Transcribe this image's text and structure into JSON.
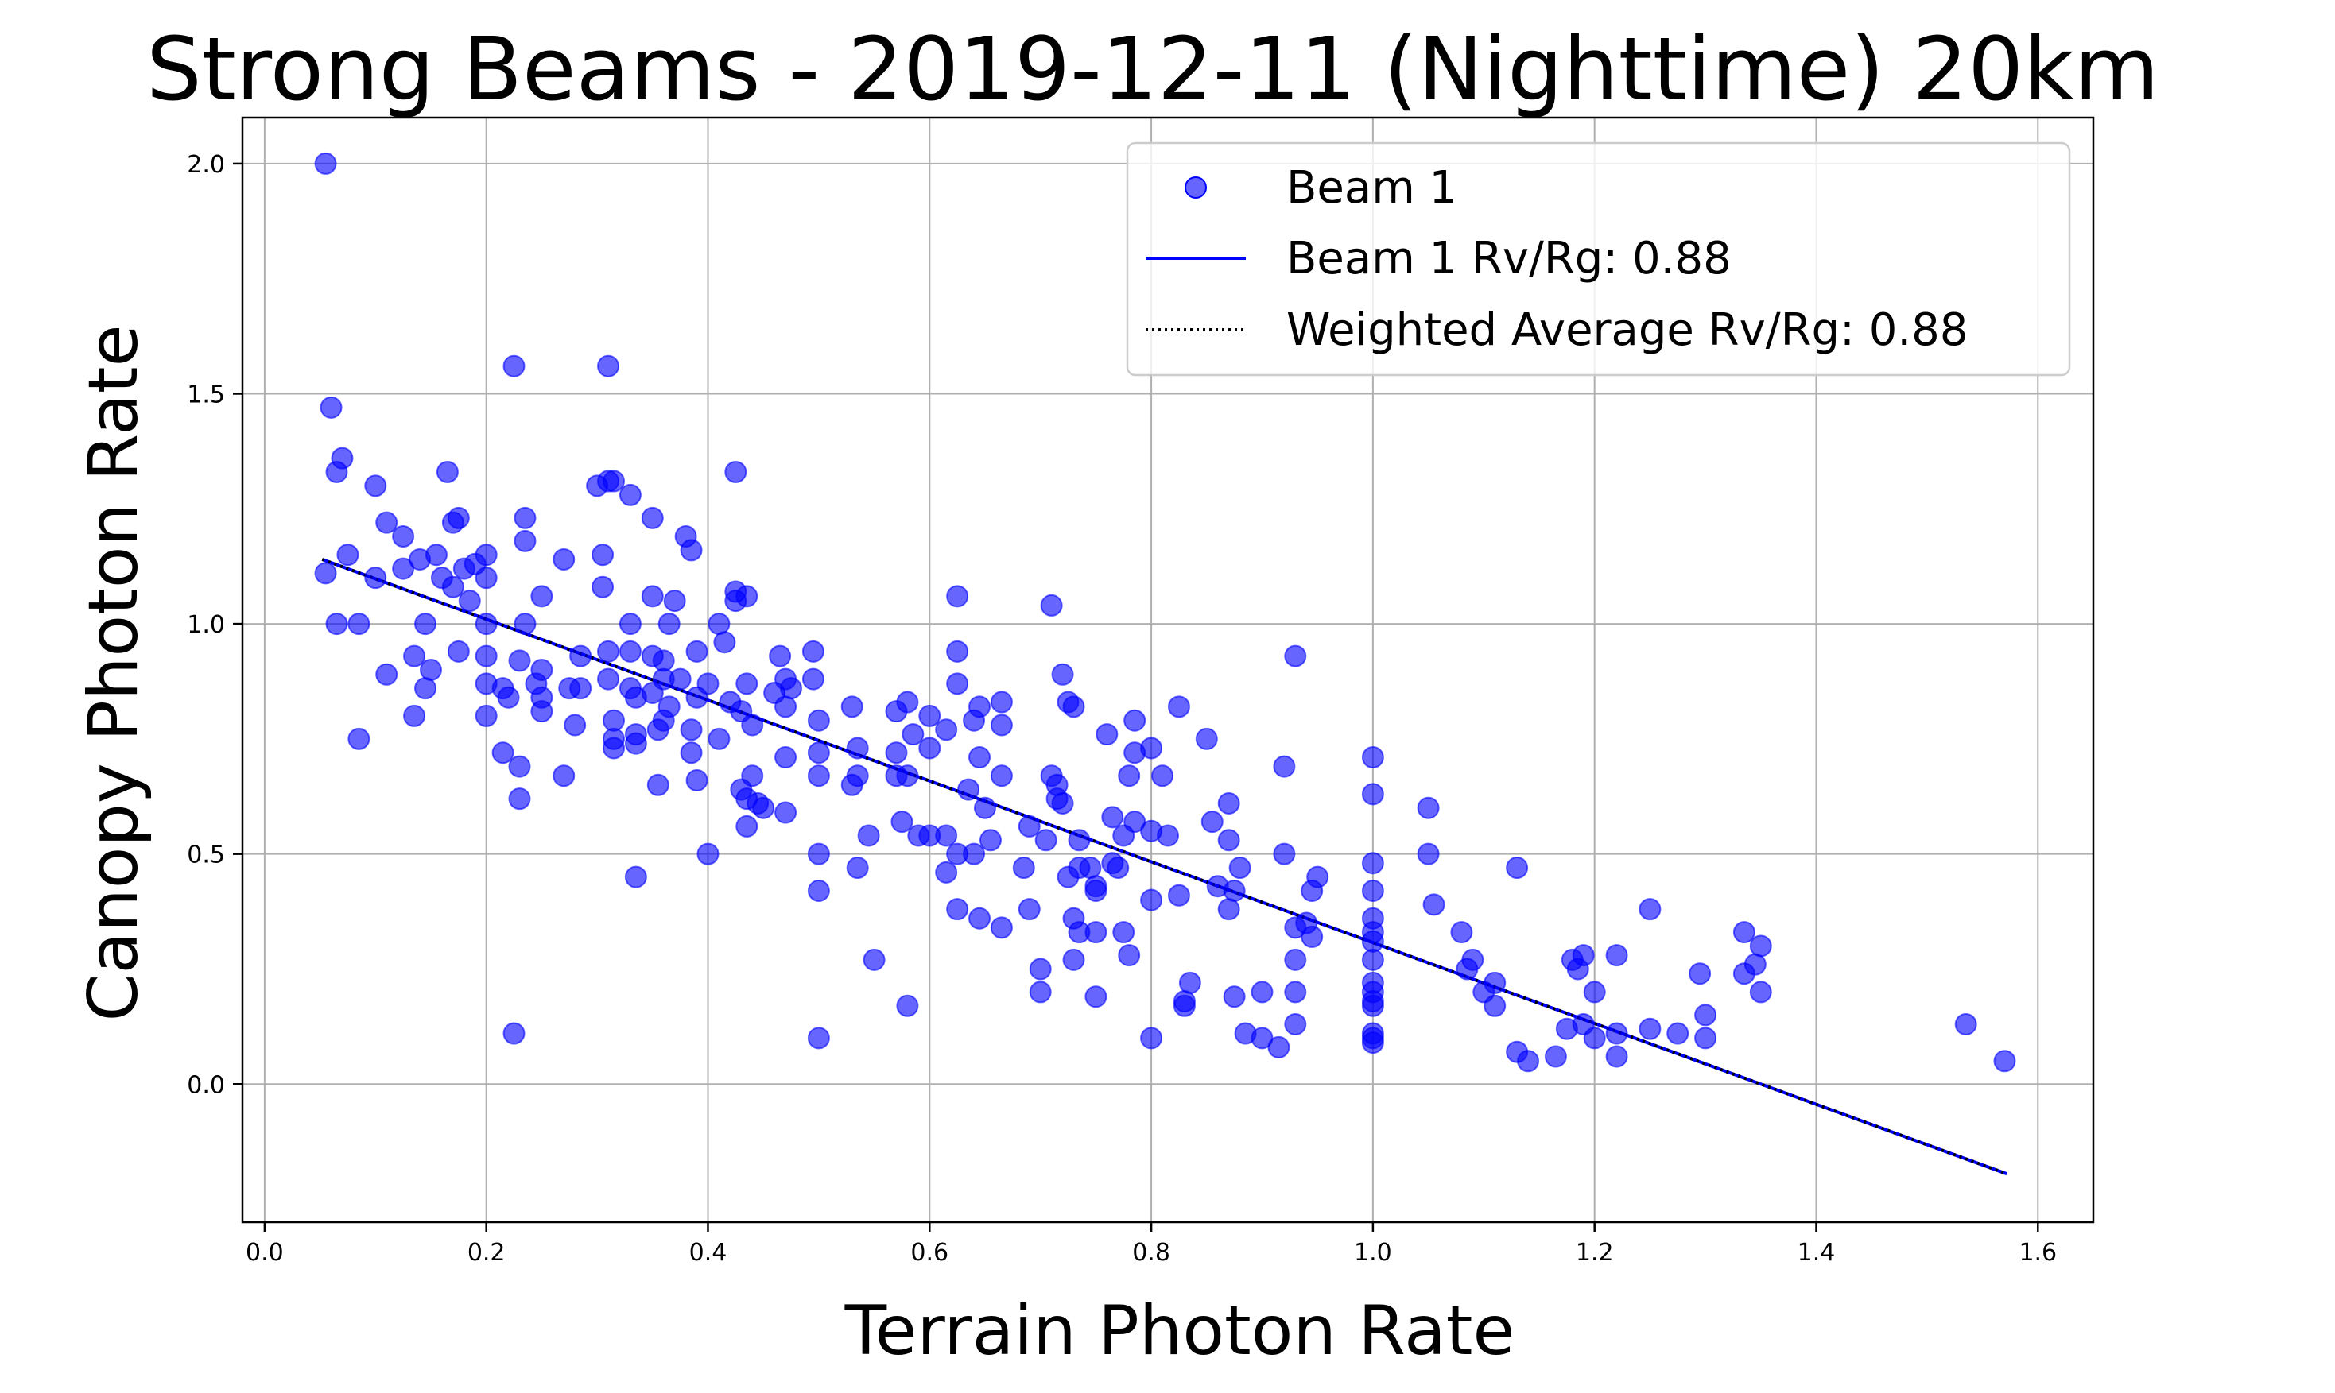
{
  "chart_data": {
    "type": "scatter",
    "title": "Strong Beams - 2019-12-11 (Nighttime) 20km",
    "xlabel": "Terrain Photon Rate",
    "ylabel": "Canopy Photon Rate",
    "xlim": [
      -0.02,
      1.65
    ],
    "ylim": [
      -0.3,
      2.1
    ],
    "xticks": [
      0.0,
      0.2,
      0.4,
      0.6,
      0.8,
      1.0,
      1.2,
      1.4,
      1.6
    ],
    "xtick_labels": [
      "0.0",
      "0.2",
      "0.4",
      "0.6",
      "0.8",
      "1.0",
      "1.2",
      "1.4",
      "1.6"
    ],
    "yticks": [
      0.0,
      0.5,
      1.0,
      1.5,
      2.0
    ],
    "ytick_labels": [
      "0.0",
      "0.5",
      "1.0",
      "1.5",
      "2.0"
    ],
    "grid": true,
    "legend_position": "top-right",
    "legend": [
      {
        "label": "Beam 1",
        "kind": "marker"
      },
      {
        "label": "Beam 1 Rv/Rg: 0.88",
        "kind": "solid-line"
      },
      {
        "label": "Weighted Average Rv/Rg: 0.88",
        "kind": "dotted-line"
      }
    ],
    "series": [
      {
        "name": "Beam 1",
        "kind": "scatter",
        "color": "#0000ff",
        "points": [
          [
            0.055,
            2.0
          ],
          [
            0.06,
            1.47
          ],
          [
            0.065,
            1.33
          ],
          [
            0.07,
            1.36
          ],
          [
            0.075,
            1.15
          ],
          [
            0.055,
            1.11
          ],
          [
            0.065,
            1.0
          ],
          [
            0.085,
            1.0
          ],
          [
            0.085,
            0.75
          ],
          [
            0.1,
            1.3
          ],
          [
            0.1,
            1.1
          ],
          [
            0.11,
            1.22
          ],
          [
            0.11,
            0.89
          ],
          [
            0.125,
            1.12
          ],
          [
            0.125,
            1.19
          ],
          [
            0.135,
            0.93
          ],
          [
            0.135,
            0.8
          ],
          [
            0.14,
            1.14
          ],
          [
            0.145,
            1.0
          ],
          [
            0.145,
            0.86
          ],
          [
            0.15,
            0.9
          ],
          [
            0.155,
            1.15
          ],
          [
            0.16,
            1.1
          ],
          [
            0.165,
            1.33
          ],
          [
            0.17,
            1.22
          ],
          [
            0.17,
            1.08
          ],
          [
            0.175,
            1.23
          ],
          [
            0.18,
            1.12
          ],
          [
            0.175,
            0.94
          ],
          [
            0.185,
            1.05
          ],
          [
            0.19,
            1.13
          ],
          [
            0.2,
            1.1
          ],
          [
            0.2,
            1.15
          ],
          [
            0.2,
            1.0
          ],
          [
            0.2,
            0.93
          ],
          [
            0.2,
            0.87
          ],
          [
            0.2,
            0.8
          ],
          [
            0.215,
            0.86
          ],
          [
            0.215,
            0.72
          ],
          [
            0.22,
            0.84
          ],
          [
            0.225,
            1.56
          ],
          [
            0.225,
            0.11
          ],
          [
            0.23,
            0.92
          ],
          [
            0.23,
            0.69
          ],
          [
            0.23,
            0.62
          ],
          [
            0.235,
            1.23
          ],
          [
            0.235,
            1.18
          ],
          [
            0.235,
            1.0
          ],
          [
            0.245,
            0.87
          ],
          [
            0.25,
            1.06
          ],
          [
            0.25,
            0.9
          ],
          [
            0.25,
            0.84
          ],
          [
            0.25,
            0.81
          ],
          [
            0.27,
            1.14
          ],
          [
            0.27,
            0.67
          ],
          [
            0.275,
            0.86
          ],
          [
            0.28,
            0.78
          ],
          [
            0.285,
            0.93
          ],
          [
            0.285,
            0.86
          ],
          [
            0.3,
            1.3
          ],
          [
            0.305,
            1.15
          ],
          [
            0.305,
            1.08
          ],
          [
            0.31,
            1.31
          ],
          [
            0.31,
            1.56
          ],
          [
            0.315,
            1.31
          ],
          [
            0.31,
            0.94
          ],
          [
            0.31,
            0.88
          ],
          [
            0.315,
            0.79
          ],
          [
            0.315,
            0.75
          ],
          [
            0.315,
            0.73
          ],
          [
            0.33,
            1.28
          ],
          [
            0.33,
            1.0
          ],
          [
            0.33,
            0.94
          ],
          [
            0.33,
            0.86
          ],
          [
            0.335,
            0.84
          ],
          [
            0.335,
            0.76
          ],
          [
            0.335,
            0.74
          ],
          [
            0.335,
            0.45
          ],
          [
            0.35,
            1.23
          ],
          [
            0.35,
            1.06
          ],
          [
            0.35,
            0.93
          ],
          [
            0.35,
            0.85
          ],
          [
            0.355,
            0.77
          ],
          [
            0.355,
            0.65
          ],
          [
            0.36,
            0.92
          ],
          [
            0.36,
            0.88
          ],
          [
            0.36,
            0.79
          ],
          [
            0.365,
            1.0
          ],
          [
            0.365,
            0.82
          ],
          [
            0.37,
            1.05
          ],
          [
            0.375,
            0.88
          ],
          [
            0.38,
            1.19
          ],
          [
            0.385,
            1.16
          ],
          [
            0.385,
            0.77
          ],
          [
            0.385,
            0.72
          ],
          [
            0.39,
            0.94
          ],
          [
            0.39,
            0.84
          ],
          [
            0.39,
            0.66
          ],
          [
            0.4,
            0.87
          ],
          [
            0.4,
            0.5
          ],
          [
            0.41,
            1.0
          ],
          [
            0.41,
            0.75
          ],
          [
            0.415,
            0.96
          ],
          [
            0.42,
            0.83
          ],
          [
            0.425,
            1.33
          ],
          [
            0.425,
            1.07
          ],
          [
            0.425,
            1.05
          ],
          [
            0.43,
            0.81
          ],
          [
            0.43,
            0.64
          ],
          [
            0.435,
            1.06
          ],
          [
            0.435,
            0.87
          ],
          [
            0.435,
            0.62
          ],
          [
            0.435,
            0.56
          ],
          [
            0.44,
            0.78
          ],
          [
            0.44,
            0.67
          ],
          [
            0.445,
            0.61
          ],
          [
            0.45,
            0.6
          ],
          [
            0.46,
            0.85
          ],
          [
            0.465,
            0.93
          ],
          [
            0.47,
            0.88
          ],
          [
            0.47,
            0.82
          ],
          [
            0.47,
            0.71
          ],
          [
            0.47,
            0.59
          ],
          [
            0.475,
            0.86
          ],
          [
            0.495,
            0.94
          ],
          [
            0.495,
            0.88
          ],
          [
            0.5,
            0.79
          ],
          [
            0.5,
            0.72
          ],
          [
            0.5,
            0.67
          ],
          [
            0.5,
            0.5
          ],
          [
            0.5,
            0.42
          ],
          [
            0.5,
            0.1
          ],
          [
            0.53,
            0.82
          ],
          [
            0.53,
            0.65
          ],
          [
            0.535,
            0.73
          ],
          [
            0.535,
            0.67
          ],
          [
            0.535,
            0.47
          ],
          [
            0.545,
            0.54
          ],
          [
            0.55,
            0.27
          ],
          [
            0.57,
            0.81
          ],
          [
            0.57,
            0.72
          ],
          [
            0.57,
            0.67
          ],
          [
            0.575,
            0.57
          ],
          [
            0.58,
            0.83
          ],
          [
            0.58,
            0.67
          ],
          [
            0.58,
            0.17
          ],
          [
            0.585,
            0.76
          ],
          [
            0.59,
            0.54
          ],
          [
            0.6,
            0.8
          ],
          [
            0.6,
            0.73
          ],
          [
            0.6,
            0.54
          ],
          [
            0.615,
            0.77
          ],
          [
            0.615,
            0.54
          ],
          [
            0.615,
            0.46
          ],
          [
            0.625,
            1.06
          ],
          [
            0.625,
            0.94
          ],
          [
            0.625,
            0.87
          ],
          [
            0.625,
            0.5
          ],
          [
            0.625,
            0.38
          ],
          [
            0.635,
            0.64
          ],
          [
            0.64,
            0.79
          ],
          [
            0.64,
            0.5
          ],
          [
            0.645,
            0.82
          ],
          [
            0.645,
            0.71
          ],
          [
            0.645,
            0.36
          ],
          [
            0.65,
            0.6
          ],
          [
            0.655,
            0.53
          ],
          [
            0.665,
            0.83
          ],
          [
            0.665,
            0.78
          ],
          [
            0.665,
            0.67
          ],
          [
            0.665,
            0.34
          ],
          [
            0.685,
            0.47
          ],
          [
            0.69,
            0.56
          ],
          [
            0.69,
            0.38
          ],
          [
            0.7,
            0.25
          ],
          [
            0.7,
            0.2
          ],
          [
            0.705,
            0.53
          ],
          [
            0.71,
            1.04
          ],
          [
            0.71,
            0.67
          ],
          [
            0.715,
            0.65
          ],
          [
            0.715,
            0.62
          ],
          [
            0.72,
            0.89
          ],
          [
            0.72,
            0.61
          ],
          [
            0.725,
            0.83
          ],
          [
            0.725,
            0.45
          ],
          [
            0.73,
            0.82
          ],
          [
            0.73,
            0.36
          ],
          [
            0.73,
            0.27
          ],
          [
            0.735,
            0.53
          ],
          [
            0.735,
            0.47
          ],
          [
            0.735,
            0.33
          ],
          [
            0.745,
            0.47
          ],
          [
            0.75,
            0.43
          ],
          [
            0.75,
            0.42
          ],
          [
            0.75,
            0.33
          ],
          [
            0.75,
            0.19
          ],
          [
            0.76,
            0.76
          ],
          [
            0.765,
            0.58
          ],
          [
            0.765,
            0.48
          ],
          [
            0.77,
            0.47
          ],
          [
            0.775,
            0.54
          ],
          [
            0.775,
            0.33
          ],
          [
            0.78,
            0.67
          ],
          [
            0.78,
            0.28
          ],
          [
            0.785,
            0.79
          ],
          [
            0.785,
            0.72
          ],
          [
            0.785,
            0.57
          ],
          [
            0.8,
            0.73
          ],
          [
            0.8,
            0.55
          ],
          [
            0.8,
            0.4
          ],
          [
            0.8,
            0.1
          ],
          [
            0.81,
            0.67
          ],
          [
            0.815,
            0.54
          ],
          [
            0.825,
            0.82
          ],
          [
            0.825,
            0.41
          ],
          [
            0.83,
            0.18
          ],
          [
            0.83,
            0.17
          ],
          [
            0.835,
            0.22
          ],
          [
            0.85,
            0.75
          ],
          [
            0.855,
            0.57
          ],
          [
            0.86,
            0.43
          ],
          [
            0.87,
            0.61
          ],
          [
            0.87,
            0.53
          ],
          [
            0.87,
            0.38
          ],
          [
            0.875,
            0.42
          ],
          [
            0.875,
            0.19
          ],
          [
            0.88,
            0.47
          ],
          [
            0.885,
            0.11
          ],
          [
            0.9,
            0.2
          ],
          [
            0.9,
            0.1
          ],
          [
            0.915,
            0.08
          ],
          [
            0.92,
            0.69
          ],
          [
            0.92,
            0.5
          ],
          [
            0.93,
            0.93
          ],
          [
            0.93,
            0.34
          ],
          [
            0.93,
            0.27
          ],
          [
            0.93,
            0.2
          ],
          [
            0.93,
            0.13
          ],
          [
            0.94,
            0.35
          ],
          [
            0.945,
            0.32
          ],
          [
            0.945,
            0.42
          ],
          [
            0.95,
            0.45
          ],
          [
            1.0,
            0.71
          ],
          [
            1.0,
            0.63
          ],
          [
            1.0,
            0.48
          ],
          [
            1.0,
            0.42
          ],
          [
            1.0,
            0.36
          ],
          [
            1.0,
            0.33
          ],
          [
            1.0,
            0.31
          ],
          [
            1.0,
            0.27
          ],
          [
            1.0,
            0.22
          ],
          [
            1.0,
            0.2
          ],
          [
            1.0,
            0.18
          ],
          [
            1.0,
            0.17
          ],
          [
            1.0,
            0.11
          ],
          [
            1.0,
            0.1
          ],
          [
            1.0,
            0.09
          ],
          [
            1.05,
            0.6
          ],
          [
            1.05,
            0.5
          ],
          [
            1.055,
            0.39
          ],
          [
            1.08,
            0.33
          ],
          [
            1.085,
            0.25
          ],
          [
            1.09,
            0.27
          ],
          [
            1.1,
            0.2
          ],
          [
            1.11,
            0.22
          ],
          [
            1.11,
            0.17
          ],
          [
            1.13,
            0.47
          ],
          [
            1.13,
            0.07
          ],
          [
            1.14,
            0.05
          ],
          [
            1.165,
            0.06
          ],
          [
            1.175,
            0.12
          ],
          [
            1.18,
            0.27
          ],
          [
            1.185,
            0.25
          ],
          [
            1.19,
            0.28
          ],
          [
            1.19,
            0.13
          ],
          [
            1.2,
            0.2
          ],
          [
            1.2,
            0.1
          ],
          [
            1.22,
            0.28
          ],
          [
            1.22,
            0.11
          ],
          [
            1.22,
            0.06
          ],
          [
            1.25,
            0.38
          ],
          [
            1.25,
            0.12
          ],
          [
            1.275,
            0.11
          ],
          [
            1.295,
            0.24
          ],
          [
            1.3,
            0.15
          ],
          [
            1.3,
            0.1
          ],
          [
            1.335,
            0.33
          ],
          [
            1.335,
            0.24
          ],
          [
            1.345,
            0.26
          ],
          [
            1.35,
            0.3
          ],
          [
            1.35,
            0.2
          ],
          [
            1.535,
            0.13
          ],
          [
            1.57,
            0.05
          ]
        ]
      },
      {
        "name": "Beam 1 Rv/Rg: 0.88",
        "kind": "line",
        "color": "#0000ff",
        "style": "solid",
        "points": [
          [
            0.052,
            1.14
          ],
          [
            1.572,
            -0.195
          ]
        ]
      },
      {
        "name": "Weighted Average Rv/Rg: 0.88",
        "kind": "line",
        "color": "#000000",
        "style": "dotted",
        "points": [
          [
            0.052,
            1.14
          ],
          [
            1.572,
            -0.195
          ]
        ]
      }
    ]
  }
}
